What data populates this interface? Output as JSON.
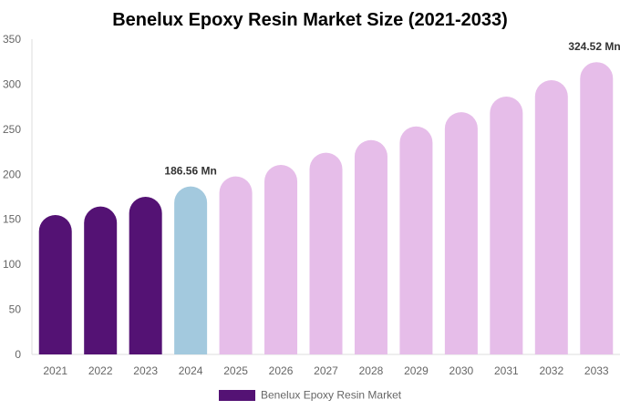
{
  "chart_data": {
    "type": "bar",
    "title": "Benelux Epoxy Resin Market Size (2021-2033)",
    "xlabel": "",
    "ylabel": "",
    "ylim": [
      0,
      350
    ],
    "yticks": [
      0,
      50,
      100,
      150,
      200,
      250,
      300,
      350
    ],
    "grid": false,
    "legend_position": "bottom",
    "categories": [
      "2021",
      "2022",
      "2023",
      "2024",
      "2025",
      "2026",
      "2027",
      "2028",
      "2029",
      "2030",
      "2031",
      "2032",
      "2033"
    ],
    "series": [
      {
        "name": "Benelux Epoxy Resin Market",
        "values": [
          154.8,
          164.2,
          175.0,
          186.56,
          197.6,
          210.4,
          223.9,
          238.0,
          253.2,
          269.0,
          286.3,
          304.5,
          324.52
        ],
        "color": "#541274"
      }
    ],
    "bar_colors": [
      "#541274",
      "#541274",
      "#541274",
      "#a3c9de",
      "#e6bde9",
      "#e6bde9",
      "#e6bde9",
      "#e6bde9",
      "#e6bde9",
      "#e6bde9",
      "#e6bde9",
      "#e6bde9",
      "#e6bde9"
    ],
    "annotations": [
      {
        "category": "2024",
        "text": "186.56 Mn"
      },
      {
        "category": "2033",
        "text": "324.52 Mn"
      }
    ]
  }
}
